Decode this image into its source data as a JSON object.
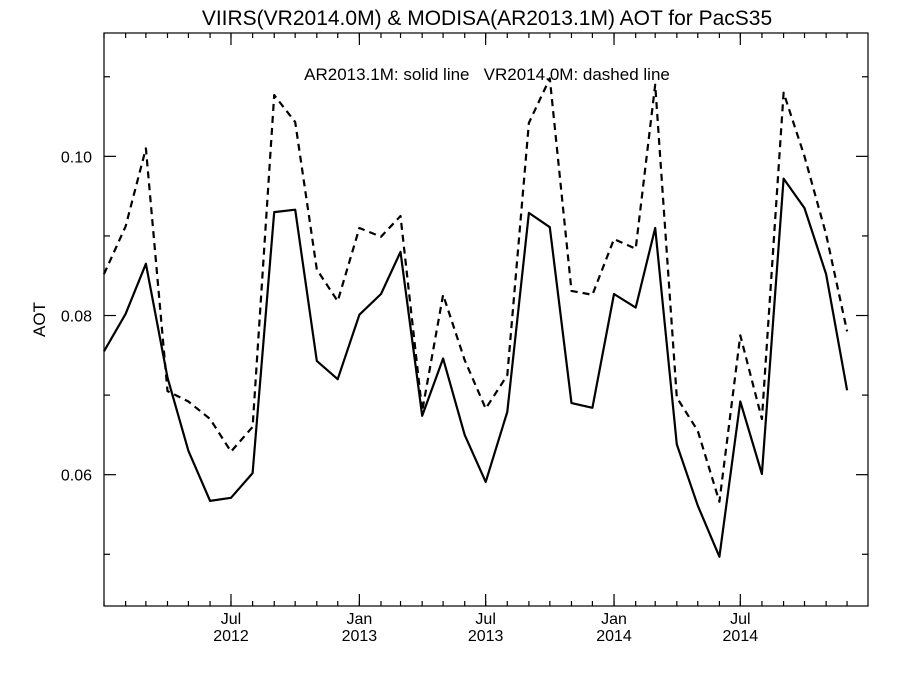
{
  "chart_data": {
    "type": "line",
    "title": "VIIRS(VR2014.0M) & MODISA(AR2013.1M)  AOT for PacS35",
    "annotation": "AR2013.1M: solid line   VR2014.0M: dashed line",
    "xlabel": "",
    "ylabel": "AOT",
    "ylim": [
      0.0435,
      0.1155
    ],
    "xlim": [
      "2012-01-01",
      "2014-12-31"
    ],
    "x_ticks": [
      {
        "month": "Jul",
        "year": "2012",
        "date": "2012-07-01"
      },
      {
        "month": "Jan",
        "year": "2013",
        "date": "2013-01-01"
      },
      {
        "month": "Jul",
        "year": "2013",
        "date": "2013-07-01"
      },
      {
        "month": "Jan",
        "year": "2014",
        "date": "2014-01-01"
      },
      {
        "month": "Jul",
        "year": "2014",
        "date": "2014-07-01"
      }
    ],
    "y_ticks": [
      {
        "value": 0.06,
        "label": "0.06"
      },
      {
        "value": 0.08,
        "label": "0.08"
      },
      {
        "value": 0.1,
        "label": "0.10"
      }
    ],
    "y_minor_ticks": [
      0.05,
      0.07,
      0.09,
      0.11
    ],
    "x": [
      "2012-01-01",
      "2012-02-01",
      "2012-03-01",
      "2012-04-01",
      "2012-05-01",
      "2012-06-01",
      "2012-07-01",
      "2012-08-01",
      "2012-09-01",
      "2012-10-01",
      "2012-11-01",
      "2012-12-01",
      "2013-01-01",
      "2013-02-01",
      "2013-03-01",
      "2013-04-01",
      "2013-05-01",
      "2013-06-01",
      "2013-07-01",
      "2013-08-01",
      "2013-09-01",
      "2013-10-01",
      "2013-11-01",
      "2013-12-01",
      "2014-01-01",
      "2014-02-01",
      "2014-03-01",
      "2014-04-01",
      "2014-05-01",
      "2014-06-01",
      "2014-07-01",
      "2014-08-01",
      "2014-09-01",
      "2014-10-01",
      "2014-11-01",
      "2014-12-01"
    ],
    "series": [
      {
        "name": "AR2013.1M",
        "style": "solid",
        "values": [
          0.0755,
          0.0802,
          0.0865,
          0.0722,
          0.063,
          0.0567,
          0.0571,
          0.0602,
          0.093,
          0.0933,
          0.0743,
          0.072,
          0.0801,
          0.0827,
          0.088,
          0.0674,
          0.0746,
          0.065,
          0.0591,
          0.0679,
          0.0929,
          0.0911,
          0.069,
          0.0684,
          0.0827,
          0.081,
          0.091,
          0.0638,
          0.0561,
          0.0497,
          0.0692,
          0.0601,
          0.0972,
          0.0935,
          0.0852,
          0.0706
        ]
      },
      {
        "name": "VR2014.0M",
        "style": "dashed",
        "values": [
          0.0852,
          0.0912,
          0.101,
          0.0705,
          0.0692,
          0.067,
          0.0629,
          0.066,
          0.1077,
          0.1043,
          0.0858,
          0.0818,
          0.091,
          0.0899,
          0.0925,
          0.068,
          0.0826,
          0.0744,
          0.0683,
          0.0725,
          0.1042,
          0.1098,
          0.0831,
          0.0826,
          0.0896,
          0.0884,
          0.109,
          0.0697,
          0.0655,
          0.0566,
          0.0775,
          0.067,
          0.108,
          0.1,
          0.0902,
          0.078
        ]
      }
    ],
    "grid": false,
    "legend": "none"
  }
}
